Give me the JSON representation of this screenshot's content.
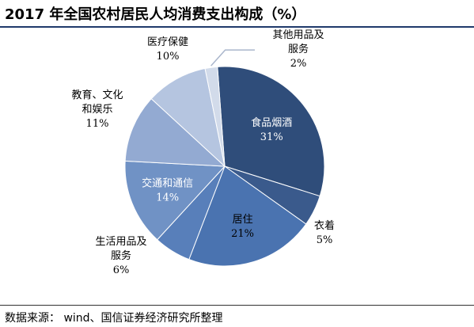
{
  "title": "2017 年全国农村居民人均消费支出构成（%）",
  "source": "数据来源：  wind、国信证券经济研究所整理",
  "chart_data": {
    "type": "pie",
    "title": "2017 年全国农村居民人均消费支出构成（%）",
    "slices": [
      {
        "name": "食品烟酒",
        "value": 31,
        "label": "31%",
        "color": "#2f4d7a"
      },
      {
        "name": "衣着",
        "value": 5,
        "label": "5%",
        "color": "#3a5a8c"
      },
      {
        "name": "居住",
        "value": 21,
        "label": "21%",
        "color": "#4a73b0"
      },
      {
        "name": "生活用品及服务",
        "value": 6,
        "label": "6%",
        "color": "#587fba"
      },
      {
        "name": "交通和通信",
        "value": 14,
        "label": "14%",
        "color": "#7092c5"
      },
      {
        "name": "教育、文化和娱乐",
        "value": 11,
        "label": "11%",
        "color": "#93aad2"
      },
      {
        "name": "医疗保健",
        "value": 10,
        "label": "10%",
        "color": "#b5c5e0"
      },
      {
        "name": "其他用品及服务",
        "value": 2,
        "label": "2%",
        "color": "#d2dbea"
      }
    ],
    "label_lines": {
      "食品烟酒": [
        "食品烟酒"
      ],
      "衣着": [
        "衣着"
      ],
      "居住": [
        "居住"
      ],
      "生活用品及服务": [
        "生活用品及",
        "服务"
      ],
      "交通和通信": [
        "交通和通信"
      ],
      "教育、文化和娱乐": [
        "教育、文化",
        "和娱乐"
      ],
      "医疗保健": [
        "医疗保健"
      ],
      "其他用品及服务": [
        "其他用品及",
        "服务"
      ]
    }
  }
}
